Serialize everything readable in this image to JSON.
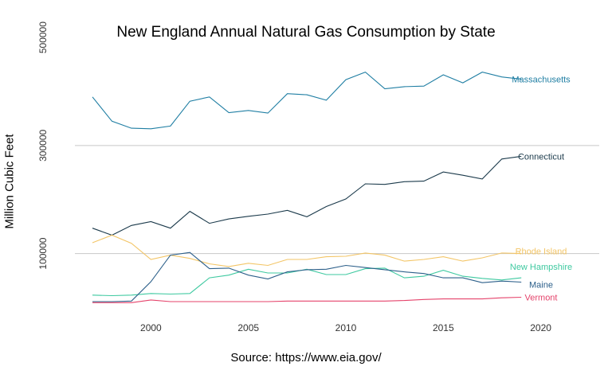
{
  "chart_data": {
    "type": "line",
    "title": "New England Annual Natural Gas Consumption by State",
    "caption": "Source: https://www.eia.gov/",
    "ylabel": "Million Cubic Feet",
    "xlabel": "",
    "x": [
      1997,
      1998,
      1999,
      2000,
      2001,
      2002,
      2003,
      2004,
      2005,
      2006,
      2007,
      2008,
      2009,
      2010,
      2011,
      2012,
      2013,
      2014,
      2015,
      2016,
      2017,
      2018,
      2019
    ],
    "xticks": [
      2000,
      2005,
      2010,
      2015,
      2020
    ],
    "yticks": [
      100000,
      300000,
      500000
    ],
    "xlim": [
      1996.1,
      2023
    ],
    "ylim": [
      -20000,
      540000
    ],
    "grid": "horizontal",
    "legend": "direct labels at line ends",
    "series": [
      {
        "name": "Massachusetts",
        "color": "#1f7ea3",
        "values": [
          390000,
          345000,
          332000,
          331000,
          336000,
          382000,
          390000,
          361000,
          365000,
          360000,
          396000,
          394000,
          384000,
          422000,
          436000,
          405000,
          409000,
          410000,
          431000,
          416000,
          436000,
          427000,
          423000
        ]
      },
      {
        "name": "Connecticut",
        "color": "#1b3a4b",
        "values": [
          147000,
          134000,
          152000,
          159000,
          147000,
          178000,
          156000,
          164000,
          169000,
          173000,
          180000,
          168000,
          187000,
          201000,
          229000,
          228000,
          233000,
          234000,
          251000,
          245000,
          238000,
          275000,
          280000
        ]
      },
      {
        "name": "Rhode Island",
        "color": "#f3c566",
        "values": [
          120000,
          134000,
          119000,
          89000,
          97000,
          91000,
          81000,
          76000,
          82000,
          78000,
          89000,
          89000,
          94000,
          95000,
          101000,
          97000,
          86000,
          89000,
          94000,
          86000,
          92000,
          101000,
          100000
        ]
      },
      {
        "name": "New Hampshire",
        "color": "#3ec9a0",
        "values": [
          23000,
          22000,
          23000,
          26000,
          25000,
          26000,
          55000,
          60000,
          71000,
          64000,
          64000,
          71000,
          61000,
          61000,
          72000,
          73000,
          55000,
          58000,
          69000,
          58000,
          54000,
          51000,
          55000
        ]
      },
      {
        "name": "Maine",
        "color": "#2c5f8a",
        "values": [
          11000,
          11000,
          12000,
          48000,
          97000,
          102000,
          72000,
          73000,
          60000,
          53000,
          66000,
          70000,
          71000,
          78000,
          74000,
          70000,
          66000,
          63000,
          55000,
          55000,
          46000,
          49000,
          47000
        ]
      },
      {
        "name": "Vermont",
        "color": "#e5436b",
        "values": [
          9000,
          9000,
          9000,
          14000,
          11000,
          11000,
          11000,
          11000,
          11000,
          11000,
          12000,
          12000,
          12000,
          12000,
          12000,
          12000,
          13000,
          15000,
          16000,
          16000,
          16000,
          18000,
          19000
        ]
      }
    ]
  }
}
